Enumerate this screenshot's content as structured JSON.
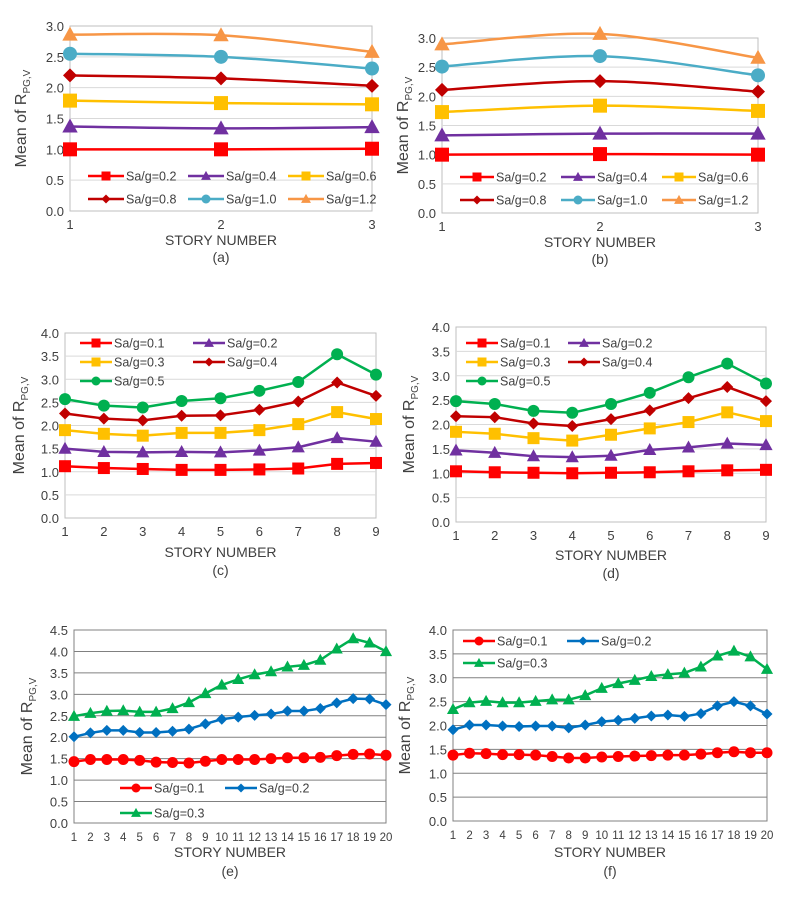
{
  "chart_data": [
    {
      "id": "a",
      "type": "line",
      "caption": "(a)",
      "xlabel": "STORY NUMBER",
      "ylabel_main": "Mean of R",
      "ylabel_sub": "PG,V",
      "x": [
        1,
        2,
        3
      ],
      "ylim": [
        0,
        3.0
      ],
      "ystep": 0.5,
      "ytick_labels": [
        "0.0",
        "0.5",
        "1.0",
        "1.5",
        "2.0",
        "2.5",
        "3.0"
      ],
      "grid": true,
      "legend_position": "bottom-inside",
      "legend_columns": 3,
      "series": [
        {
          "name": "Sa/g=0.2",
          "color": "#ff0000",
          "marker": "square",
          "values": [
            1.0,
            1.0,
            1.01
          ]
        },
        {
          "name": "Sa/g=0.4",
          "color": "#7030a0",
          "marker": "triangle",
          "values": [
            1.37,
            1.34,
            1.36
          ]
        },
        {
          "name": "Sa/g=0.6",
          "color": "#ffc000",
          "marker": "square",
          "values": [
            1.79,
            1.75,
            1.73
          ]
        },
        {
          "name": "Sa/g=0.8",
          "color": "#c00000",
          "marker": "diamond",
          "values": [
            2.2,
            2.15,
            2.03
          ]
        },
        {
          "name": "Sa/g=1.0",
          "color": "#4bacc6",
          "marker": "circle",
          "values": [
            2.55,
            2.5,
            2.31
          ]
        },
        {
          "name": "Sa/g=1.2",
          "color": "#f79646",
          "marker": "triangle",
          "values": [
            2.86,
            2.85,
            2.58
          ]
        }
      ]
    },
    {
      "id": "b",
      "type": "line",
      "caption": "(b)",
      "xlabel": "STORY NUMBER",
      "ylabel_main": "Mean of R",
      "ylabel_sub": "PG,V",
      "x": [
        1,
        2,
        3
      ],
      "ylim": [
        0,
        3.0
      ],
      "ystep": 0.5,
      "ytick_labels": [
        "0.0",
        "0.5",
        "1.0",
        "1.5",
        "2.0",
        "2.5",
        "3.0"
      ],
      "grid": true,
      "legend_position": "bottom-inside",
      "legend_columns": 3,
      "series": [
        {
          "name": "Sa/g=0.2",
          "color": "#ff0000",
          "marker": "square",
          "values": [
            1.0,
            1.01,
            1.0
          ]
        },
        {
          "name": "Sa/g=0.4",
          "color": "#7030a0",
          "marker": "triangle",
          "values": [
            1.33,
            1.36,
            1.36
          ]
        },
        {
          "name": "Sa/g=0.6",
          "color": "#ffc000",
          "marker": "square",
          "values": [
            1.73,
            1.84,
            1.75
          ]
        },
        {
          "name": "Sa/g=0.8",
          "color": "#c00000",
          "marker": "diamond",
          "values": [
            2.11,
            2.26,
            2.08
          ]
        },
        {
          "name": "Sa/g=1.0",
          "color": "#4bacc6",
          "marker": "circle",
          "values": [
            2.51,
            2.69,
            2.36
          ]
        },
        {
          "name": "Sa/g=1.2",
          "color": "#f79646",
          "marker": "triangle",
          "values": [
            2.89,
            3.07,
            2.66
          ]
        }
      ]
    },
    {
      "id": "c",
      "type": "line",
      "caption": "(c)",
      "xlabel": "STORY NUMBER",
      "ylabel_main": "Mean of R",
      "ylabel_sub": "PG,V",
      "x": [
        1,
        2,
        3,
        4,
        5,
        6,
        7,
        8,
        9
      ],
      "ylim": [
        0,
        4.0
      ],
      "ystep": 0.5,
      "ytick_labels": [
        "0.0",
        "0.5",
        "1.0",
        "1.5",
        "2.0",
        "2.5",
        "3.0",
        "3.5",
        "4.0"
      ],
      "grid": true,
      "legend_position": "top-left-inside",
      "legend_columns": 2,
      "series": [
        {
          "name": "Sa/g=0.1",
          "color": "#ff0000",
          "marker": "square",
          "values": [
            1.12,
            1.08,
            1.06,
            1.04,
            1.04,
            1.05,
            1.07,
            1.17,
            1.19
          ]
        },
        {
          "name": "Sa/g=0.2",
          "color": "#7030a0",
          "marker": "triangle",
          "values": [
            1.5,
            1.43,
            1.42,
            1.43,
            1.42,
            1.46,
            1.53,
            1.73,
            1.65
          ]
        },
        {
          "name": "Sa/g=0.3",
          "color": "#ffc000",
          "marker": "square",
          "values": [
            1.9,
            1.82,
            1.78,
            1.84,
            1.84,
            1.9,
            2.03,
            2.29,
            2.14
          ]
        },
        {
          "name": "Sa/g=0.4",
          "color": "#c00000",
          "marker": "diamond",
          "values": [
            2.26,
            2.15,
            2.11,
            2.21,
            2.22,
            2.34,
            2.52,
            2.93,
            2.64
          ]
        },
        {
          "name": "Sa/g=0.5",
          "color": "#00b050",
          "marker": "circle",
          "values": [
            2.57,
            2.43,
            2.39,
            2.53,
            2.59,
            2.75,
            2.94,
            3.54,
            3.1
          ]
        }
      ]
    },
    {
      "id": "d",
      "type": "line",
      "caption": "(d)",
      "xlabel": "STORY NUMBER",
      "ylabel_main": "Mean of R",
      "ylabel_sub": "PG,V",
      "x": [
        1,
        2,
        3,
        4,
        5,
        6,
        7,
        8,
        9
      ],
      "ylim": [
        0,
        4.0
      ],
      "ystep": 0.5,
      "ytick_labels": [
        "0.0",
        "0.5",
        "1.0",
        "1.5",
        "2.0",
        "2.5",
        "3.0",
        "3.5",
        "4.0"
      ],
      "grid": true,
      "legend_position": "top-left-inside",
      "legend_columns": 2,
      "series": [
        {
          "name": "Sa/g=0.1",
          "color": "#ff0000",
          "marker": "square",
          "values": [
            1.04,
            1.02,
            1.01,
            1.0,
            1.01,
            1.02,
            1.04,
            1.06,
            1.07
          ]
        },
        {
          "name": "Sa/g=0.2",
          "color": "#7030a0",
          "marker": "triangle",
          "values": [
            1.47,
            1.42,
            1.35,
            1.33,
            1.36,
            1.48,
            1.53,
            1.61,
            1.58
          ]
        },
        {
          "name": "Sa/g=0.3",
          "color": "#ffc000",
          "marker": "square",
          "values": [
            1.85,
            1.81,
            1.72,
            1.67,
            1.79,
            1.92,
            2.05,
            2.25,
            2.07
          ]
        },
        {
          "name": "Sa/g=0.4",
          "color": "#c00000",
          "marker": "diamond",
          "values": [
            2.17,
            2.15,
            2.02,
            1.97,
            2.11,
            2.29,
            2.54,
            2.77,
            2.48
          ]
        },
        {
          "name": "Sa/g=0.5",
          "color": "#00b050",
          "marker": "circle",
          "values": [
            2.48,
            2.42,
            2.28,
            2.24,
            2.42,
            2.65,
            2.97,
            3.25,
            2.84
          ]
        }
      ]
    },
    {
      "id": "e",
      "type": "line",
      "caption": "(e)",
      "xlabel": "STORY NUMBER",
      "ylabel_main": "Mean of R",
      "ylabel_sub": "PG,V",
      "x": [
        1,
        2,
        3,
        4,
        5,
        6,
        7,
        8,
        9,
        10,
        11,
        12,
        13,
        14,
        15,
        16,
        17,
        18,
        19,
        20
      ],
      "ylim": [
        0,
        4.5
      ],
      "ystep": 0.5,
      "ytick_labels": [
        "0.0",
        "0.5",
        "1.0",
        "1.5",
        "2.0",
        "2.5",
        "3.0",
        "3.5",
        "4.0",
        "4.5"
      ],
      "grid": true,
      "legend_position": "bottom-inside",
      "legend_columns": 2,
      "series": [
        {
          "name": "Sa/g=0.1",
          "color": "#ff0000",
          "marker": "circle",
          "values": [
            1.43,
            1.48,
            1.48,
            1.48,
            1.46,
            1.42,
            1.41,
            1.4,
            1.44,
            1.48,
            1.48,
            1.48,
            1.5,
            1.52,
            1.52,
            1.53,
            1.57,
            1.6,
            1.61,
            1.58
          ]
        },
        {
          "name": "Sa/g=0.2",
          "color": "#0070c0",
          "marker": "diamond",
          "values": [
            2.01,
            2.1,
            2.16,
            2.16,
            2.11,
            2.11,
            2.14,
            2.19,
            2.31,
            2.42,
            2.47,
            2.51,
            2.54,
            2.61,
            2.61,
            2.67,
            2.8,
            2.9,
            2.89,
            2.76
          ]
        },
        {
          "name": "Sa/g=0.3",
          "color": "#00b050",
          "marker": "triangle",
          "values": [
            2.49,
            2.56,
            2.61,
            2.62,
            2.59,
            2.59,
            2.67,
            2.81,
            3.02,
            3.22,
            3.35,
            3.46,
            3.53,
            3.64,
            3.68,
            3.8,
            4.06,
            4.3,
            4.2,
            4.0
          ]
        }
      ]
    },
    {
      "id": "f",
      "type": "line",
      "caption": "(f)",
      "xlabel": "STORY NUMBER",
      "ylabel_main": "Mean of R",
      "ylabel_sub": "PG,V",
      "x": [
        1,
        2,
        3,
        4,
        5,
        6,
        7,
        8,
        9,
        10,
        11,
        12,
        13,
        14,
        15,
        16,
        17,
        18,
        19,
        20
      ],
      "ylim": [
        0,
        4.0
      ],
      "ystep": 0.5,
      "ytick_labels": [
        "0.0",
        "0.5",
        "1.0",
        "1.5",
        "2.0",
        "2.5",
        "3.0",
        "3.5",
        "4.0"
      ],
      "grid": true,
      "legend_position": "top-left-inside",
      "legend_columns": 2,
      "series": [
        {
          "name": "Sa/g=0.1",
          "color": "#ff0000",
          "marker": "circle",
          "values": [
            1.38,
            1.42,
            1.41,
            1.39,
            1.39,
            1.38,
            1.35,
            1.32,
            1.32,
            1.34,
            1.35,
            1.36,
            1.37,
            1.38,
            1.38,
            1.4,
            1.43,
            1.45,
            1.43,
            1.43
          ]
        },
        {
          "name": "Sa/g=0.2",
          "color": "#0070c0",
          "marker": "diamond",
          "values": [
            1.91,
            2.01,
            2.01,
            1.99,
            1.98,
            1.99,
            1.99,
            1.95,
            2.01,
            2.08,
            2.11,
            2.15,
            2.2,
            2.22,
            2.19,
            2.25,
            2.41,
            2.5,
            2.41,
            2.24
          ]
        },
        {
          "name": "Sa/g=0.3",
          "color": "#00b050",
          "marker": "triangle",
          "values": [
            2.34,
            2.48,
            2.51,
            2.48,
            2.48,
            2.51,
            2.54,
            2.54,
            2.63,
            2.78,
            2.88,
            2.95,
            3.03,
            3.07,
            3.1,
            3.23,
            3.46,
            3.56,
            3.44,
            3.18
          ]
        }
      ]
    }
  ]
}
